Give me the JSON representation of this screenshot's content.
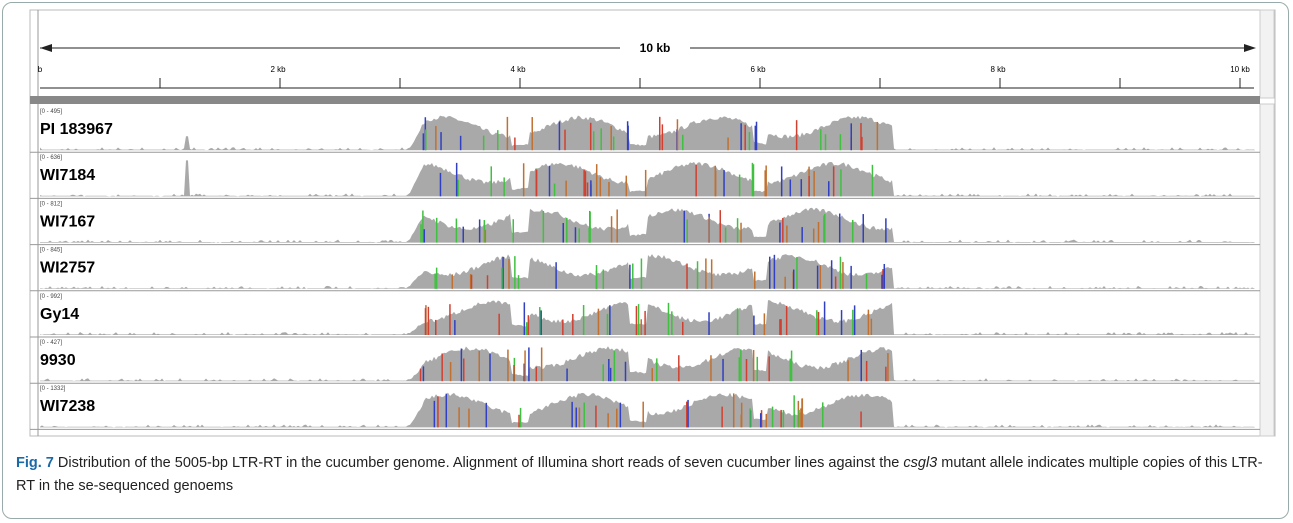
{
  "ruler": {
    "span_label": "10 kb",
    "tick_labels": [
      "b",
      "2 kb",
      "4 kb",
      "6 kb",
      "8 kb",
      "10 kb"
    ]
  },
  "tracks": [
    {
      "range": "[0 - 495]",
      "name": "PI 183967"
    },
    {
      "range": "[0 - 636]",
      "name": "WI7184"
    },
    {
      "range": "[0 - 812]",
      "name": "WI7167"
    },
    {
      "range": "[0 - 845]",
      "name": "WI2757"
    },
    {
      "range": "[0 - 992]",
      "name": "Gy14"
    },
    {
      "range": "[0 - 427]",
      "name": "9930"
    },
    {
      "range": "[0 - 1332]",
      "name": "WI7238"
    }
  ],
  "caption": {
    "label": "Fig. 7",
    "text_before": "Distribution of the 5005-bp LTR-RT in the cucumber genome. Alignment of Illumina short reads of seven cucumber lines against the ",
    "italic": "csgl3",
    "text_after": " mutant allele indicates multiple copies of this LTR-RT in the se-sequenced genoems"
  }
}
